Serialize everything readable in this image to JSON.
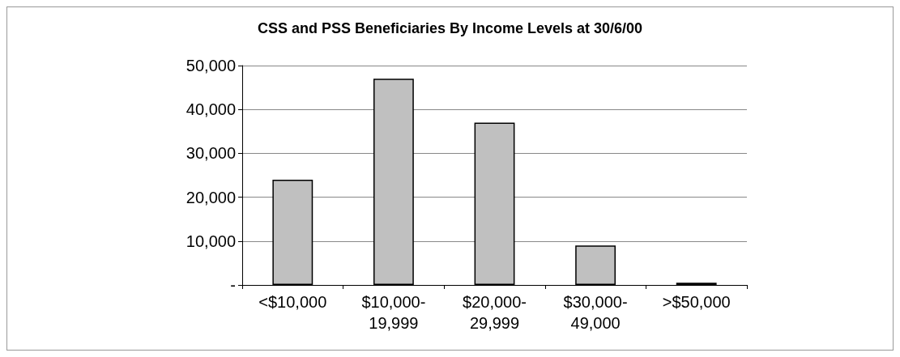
{
  "chart_data": {
    "type": "bar",
    "title": "CSS and PSS Beneficiaries By Income Levels at 30/6/00",
    "categories": [
      "<$10,000",
      "$10,000-\n19,999",
      "$20,000-\n29,999",
      "$30,000-\n49,000",
      ">$50,000"
    ],
    "values": [
      24000,
      47000,
      37000,
      9000,
      500
    ],
    "color": "#c0c0c0",
    "ylim": [
      0,
      50000
    ],
    "yticks": [
      {
        "value": 0,
        "label": "-"
      },
      {
        "value": 10000,
        "label": "10,000"
      },
      {
        "value": 20000,
        "label": "20,000"
      },
      {
        "value": 30000,
        "label": "30,000"
      },
      {
        "value": 40000,
        "label": "40,000"
      },
      {
        "value": 50000,
        "label": "50,000"
      }
    ],
    "grid": "y"
  }
}
